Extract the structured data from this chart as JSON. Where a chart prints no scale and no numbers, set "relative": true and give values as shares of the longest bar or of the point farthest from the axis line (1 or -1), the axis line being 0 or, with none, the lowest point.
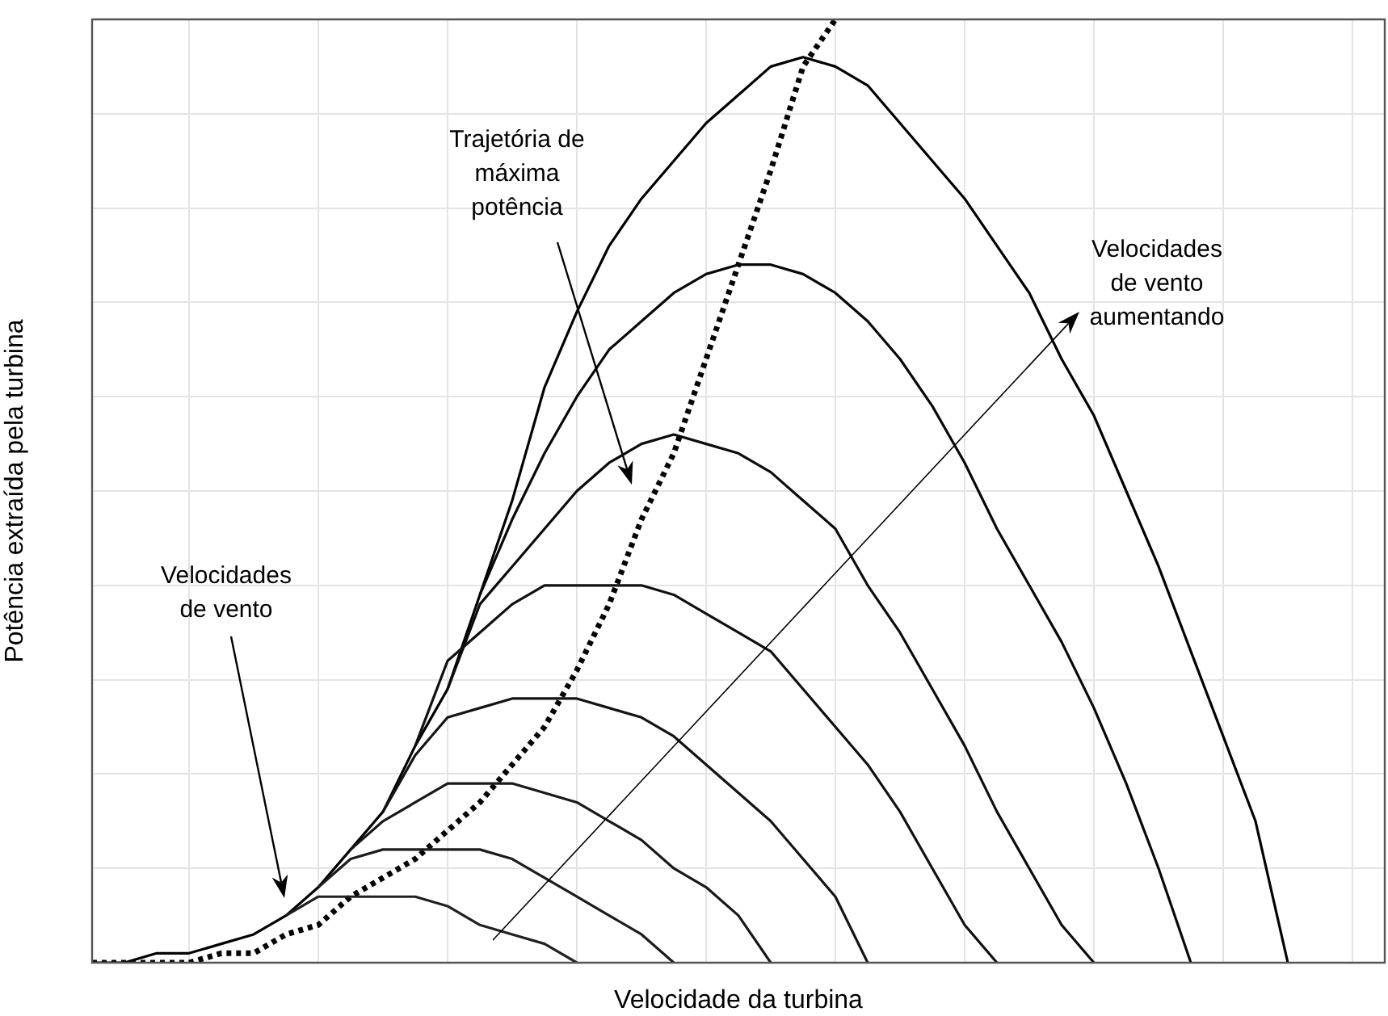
{
  "chart_data": {
    "type": "line",
    "relative": true,
    "xlabel": "Velocidade da turbina",
    "ylabel": "Potência extraída pela turbina",
    "categories": [
      null,
      null,
      null,
      null,
      null,
      null,
      null,
      null,
      null,
      null,
      null,
      null,
      null,
      null,
      null,
      null,
      null,
      null,
      null,
      null,
      null,
      null,
      null,
      null,
      null,
      null,
      null,
      null,
      null,
      null,
      null,
      null,
      null,
      null,
      null,
      null,
      null,
      null,
      null,
      null,
      null
    ],
    "grid": true,
    "legend": false,
    "marker": "none",
    "annotations": [
      "Trajetória de máxima potência",
      "Velocidades de vento aumentando",
      "Velocidades de vento"
    ],
    "series": [
      {
        "color": "#202020",
        "values": [
          null,
          null,
          null,
          null,
          null,
          null,
          0.05,
          0.07,
          0.07,
          0.07,
          0.07,
          0.06,
          0.04,
          0.03,
          0.02,
          0,
          null,
          null,
          null,
          null,
          null,
          null,
          null,
          null,
          null,
          null,
          null,
          null,
          null,
          null,
          null,
          null,
          null,
          null,
          null,
          null,
          null,
          null,
          null,
          null,
          null
        ]
      },
      {
        "color": "#1c1c1c",
        "values": [
          null,
          null,
          null,
          null,
          null,
          null,
          null,
          0.08,
          0.11,
          0.12,
          0.12,
          0.12,
          0.12,
          0.11,
          0.09,
          0.07,
          0.05,
          0.03,
          0,
          null,
          null,
          null,
          null,
          null,
          null,
          null,
          null,
          null,
          null,
          null,
          null,
          null,
          null,
          null,
          null,
          null,
          null,
          null,
          null,
          null,
          null
        ]
      },
      {
        "color": "#181818",
        "values": [
          null,
          null,
          null,
          null,
          null,
          null,
          null,
          null,
          0.12,
          0.15,
          0.17,
          0.19,
          0.19,
          0.19,
          0.18,
          0.17,
          0.15,
          0.13,
          0.1,
          0.08,
          0.05,
          0,
          null,
          null,
          null,
          null,
          null,
          null,
          null,
          null,
          null,
          null,
          null,
          null,
          null,
          null,
          null,
          null,
          null,
          null,
          null
        ]
      },
      {
        "color": "#141414",
        "values": [
          null,
          null,
          null,
          null,
          null,
          null,
          null,
          null,
          null,
          0.16,
          0.22,
          0.26,
          0.27,
          0.28,
          0.28,
          0.28,
          0.27,
          0.26,
          0.24,
          0.21,
          0.18,
          0.15,
          0.11,
          0.07,
          0,
          null,
          null,
          null,
          null,
          null,
          null,
          null,
          null,
          null,
          null,
          null,
          null,
          null,
          null,
          null,
          null
        ]
      },
      {
        "color": "#101010",
        "values": [
          null,
          null,
          null,
          null,
          null,
          null,
          null,
          null,
          null,
          null,
          0.23,
          0.32,
          0.35,
          0.38,
          0.4,
          0.4,
          0.4,
          0.4,
          0.39,
          0.37,
          0.35,
          0.33,
          0.29,
          0.25,
          0.21,
          0.16,
          0.1,
          0.04,
          0,
          null,
          null,
          null,
          null,
          null,
          null,
          null,
          null,
          null,
          null,
          null,
          null
        ]
      },
      {
        "color": "#0c0c0c",
        "values": [
          null,
          null,
          null,
          null,
          null,
          null,
          null,
          null,
          null,
          null,
          null,
          0.29,
          0.38,
          0.42,
          0.46,
          0.5,
          0.53,
          0.55,
          0.56,
          0.55,
          0.54,
          0.52,
          0.49,
          0.46,
          0.4,
          0.35,
          0.29,
          0.23,
          0.16,
          0.1,
          0.04,
          0,
          null,
          null,
          null,
          null,
          null,
          null,
          null,
          null,
          null
        ]
      },
      {
        "color": "#080808",
        "values": [
          null,
          null,
          null,
          null,
          null,
          null,
          null,
          null,
          null,
          null,
          null,
          null,
          0.39,
          0.47,
          0.54,
          0.6,
          0.65,
          0.68,
          0.71,
          0.73,
          0.74,
          0.74,
          0.73,
          0.71,
          0.68,
          0.64,
          0.59,
          0.53,
          0.46,
          0.4,
          0.34,
          0.27,
          0.19,
          0.1,
          0,
          null,
          null,
          null,
          null,
          null,
          null
        ]
      },
      {
        "color": "#000000",
        "values": [
          0,
          0,
          0.01,
          0.01,
          0.02,
          0.03,
          0.05,
          0.08,
          0.12,
          0.16,
          0.23,
          0.29,
          0.39,
          0.49,
          0.61,
          0.69,
          0.76,
          0.81,
          0.85,
          0.89,
          0.92,
          0.95,
          0.96,
          0.95,
          0.93,
          0.89,
          0.85,
          0.81,
          0.76,
          0.71,
          0.64,
          0.58,
          0.5,
          0.42,
          0.33,
          0.24,
          0.15,
          0,
          null,
          null,
          null
        ]
      },
      {
        "color": "#040404",
        "line_style": "dotted",
        "values": [
          0,
          0,
          0,
          0,
          0.01,
          0.01,
          0.03,
          0.04,
          0.07,
          0.09,
          0.11,
          0.14,
          0.17,
          0.21,
          0.25,
          0.31,
          0.38,
          0.47,
          0.54,
          0.64,
          0.74,
          0.84,
          0.95,
          1,
          null,
          null,
          null,
          null,
          null,
          null,
          null,
          null,
          null,
          null,
          null,
          null,
          null,
          null,
          null,
          null,
          null
        ]
      }
    ]
  }
}
